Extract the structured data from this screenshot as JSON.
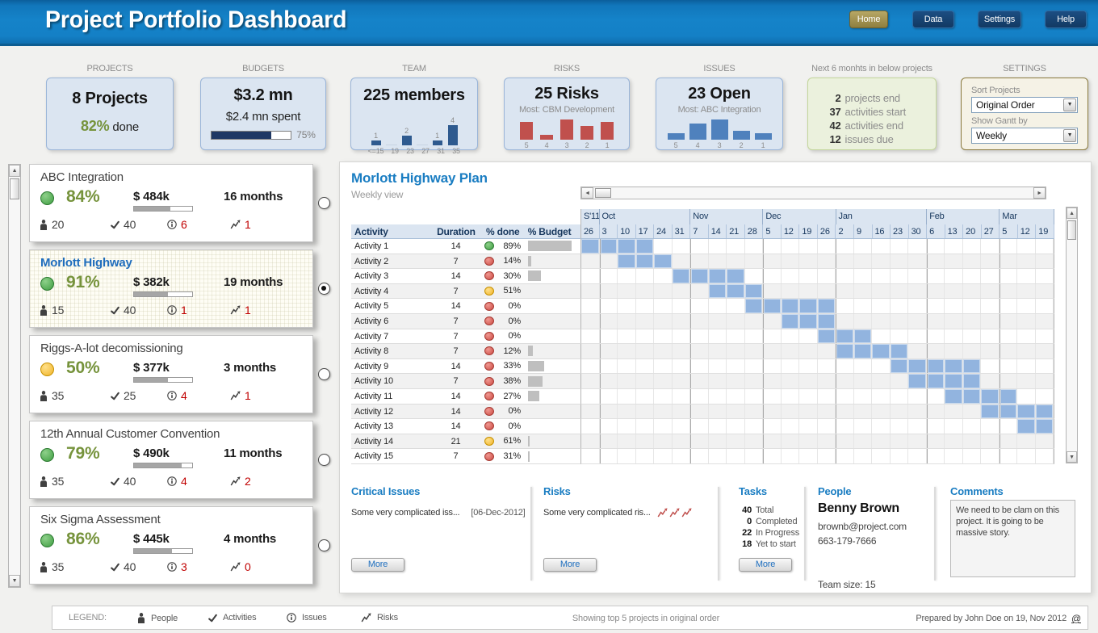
{
  "header": {
    "title": "Project Portfolio Dashboard",
    "buttons": [
      {
        "label": "Home",
        "active": true
      },
      {
        "label": "Data",
        "active": false
      },
      {
        "label": "Settings",
        "active": false
      },
      {
        "label": "Help",
        "active": false
      }
    ]
  },
  "colors": {
    "header_blue": "#1583c9",
    "accent_blue": "#1a7dc2",
    "olive_green": "#76933c",
    "red_text": "#c00000",
    "gantt_bar": "#92b4df",
    "risks_bar": "#c0504d",
    "issues_bar": "#4f81bd",
    "team_bar": "#2e5a8f",
    "kpi_card_bg": "#dbe5f1"
  },
  "kpi": {
    "projects": {
      "label": "PROJECTS",
      "value": "8 Projects",
      "percent": "82%",
      "suffix": "done"
    },
    "budgets": {
      "label": "BUDGETS",
      "value": "$3.2 mn",
      "spent": "$2.4 mn spent",
      "progress_pct": 75,
      "progress_label": "75%"
    },
    "team": {
      "label": "TEAM",
      "value": "225 members",
      "chart": {
        "type": "bar",
        "categories": [
          "<=15",
          "19",
          "23",
          "27",
          "31",
          "35"
        ],
        "values": [
          1,
          0,
          2,
          0,
          1,
          4
        ]
      }
    },
    "risks": {
      "label": "RISKS",
      "value": "25 Risks",
      "subtitle": "Most: CBM Development",
      "chart": {
        "type": "bar",
        "categories": [
          "5",
          "4",
          "3",
          "2",
          "1"
        ],
        "values": [
          8,
          2,
          9,
          6,
          8
        ]
      }
    },
    "issues": {
      "label": "ISSUES",
      "value": "23 Open",
      "subtitle": "Most: ABC Integration",
      "chart": {
        "type": "bar",
        "categories": [
          "5",
          "4",
          "3",
          "2",
          "1"
        ],
        "values": [
          3,
          7,
          9,
          4,
          3
        ]
      }
    },
    "next6": {
      "label": "Next 6 monhts in below projects",
      "items": [
        {
          "num": "2",
          "text": "projects end"
        },
        {
          "num": "37",
          "text": "activities start"
        },
        {
          "num": "42",
          "text": "activities end"
        },
        {
          "num": "12",
          "text": "issues due"
        }
      ]
    },
    "settings": {
      "label": "SETTINGS",
      "sort_label": "Sort Projects",
      "sort_value": "Original Order",
      "gantt_label": "Show Gantt by",
      "gantt_value": "Weekly"
    }
  },
  "projects": [
    {
      "name": "ABC Integration",
      "status": "green",
      "percent": "84%",
      "budget": "$ 484k",
      "budget_bar": 62,
      "duration": "16 months",
      "people": "20",
      "activities": "40",
      "issues": "6",
      "risks": "1",
      "selected": false
    },
    {
      "name": "Morlott Highway",
      "status": "green",
      "percent": "91%",
      "budget": "$ 382k",
      "budget_bar": 58,
      "duration": "19 months",
      "people": "15",
      "activities": "40",
      "issues": "1",
      "risks": "1",
      "selected": true
    },
    {
      "name": "Riggs-A-lot decomissioning",
      "status": "yellow",
      "percent": "50%",
      "budget": "$ 377k",
      "budget_bar": 58,
      "duration": "3 months",
      "people": "35",
      "activities": "25",
      "issues": "4",
      "risks": "1",
      "selected": false
    },
    {
      "name": "12th Annual Customer Convention",
      "status": "green",
      "percent": "79%",
      "budget": "$ 490k",
      "budget_bar": 82,
      "duration": "11 months",
      "people": "35",
      "activities": "40",
      "issues": "4",
      "risks": "2",
      "selected": false
    },
    {
      "name": "Six Sigma Assessment",
      "status": "green",
      "percent": "86%",
      "budget": "$ 445k",
      "budget_bar": 65,
      "duration": "4 months",
      "people": "35",
      "activities": "40",
      "issues": "3",
      "risks": "0",
      "selected": false
    }
  ],
  "gantt": {
    "title": "Morlott Highway Plan",
    "subtitle": "Weekly view",
    "columns": {
      "activity": "Activity",
      "duration": "Duration",
      "done": "% done",
      "budget": "% Budget"
    },
    "months": [
      {
        "label": "S'11",
        "span": 1
      },
      {
        "label": "Oct",
        "span": 5
      },
      {
        "label": "Nov",
        "span": 4
      },
      {
        "label": "Dec",
        "span": 4
      },
      {
        "label": "Jan",
        "span": 5
      },
      {
        "label": "Feb",
        "span": 4
      },
      {
        "label": "Mar",
        "span": 3
      }
    ],
    "weeks": [
      "26",
      "3",
      "10",
      "17",
      "24",
      "31",
      "7",
      "14",
      "21",
      "28",
      "5",
      "12",
      "19",
      "26",
      "2",
      "9",
      "16",
      "23",
      "30",
      "6",
      "13",
      "20",
      "27",
      "5",
      "12",
      "19"
    ],
    "activities": [
      {
        "name": "Activity 1",
        "duration": "14",
        "status": "green",
        "done": "89%",
        "budget_bar": 85,
        "bar_start": 0,
        "bar_span": 4
      },
      {
        "name": "Activity 2",
        "duration": "7",
        "status": "red",
        "done": "14%",
        "budget_bar": 6,
        "bar_start": 2,
        "bar_span": 3
      },
      {
        "name": "Activity 3",
        "duration": "14",
        "status": "red",
        "done": "30%",
        "budget_bar": 25,
        "bar_start": 5,
        "bar_span": 4
      },
      {
        "name": "Activity 4",
        "duration": "7",
        "status": "yellow",
        "done": "51%",
        "budget_bar": 0,
        "bar_start": 7,
        "bar_span": 3
      },
      {
        "name": "Activity 5",
        "duration": "14",
        "status": "red",
        "done": "0%",
        "budget_bar": 0,
        "bar_start": 9,
        "bar_span": 5
      },
      {
        "name": "Activity 6",
        "duration": "7",
        "status": "red",
        "done": "0%",
        "budget_bar": 0,
        "bar_start": 11,
        "bar_span": 3
      },
      {
        "name": "Activity 7",
        "duration": "7",
        "status": "red",
        "done": "0%",
        "budget_bar": 0,
        "bar_start": 13,
        "bar_span": 3
      },
      {
        "name": "Activity 8",
        "duration": "7",
        "status": "red",
        "done": "12%",
        "budget_bar": 10,
        "bar_start": 14,
        "bar_span": 4
      },
      {
        "name": "Activity 9",
        "duration": "14",
        "status": "red",
        "done": "33%",
        "budget_bar": 32,
        "bar_start": 17,
        "bar_span": 5
      },
      {
        "name": "Activity 10",
        "duration": "7",
        "status": "red",
        "done": "38%",
        "budget_bar": 28,
        "bar_start": 18,
        "bar_span": 4
      },
      {
        "name": "Activity 11",
        "duration": "14",
        "status": "red",
        "done": "27%",
        "budget_bar": 22,
        "bar_start": 20,
        "bar_span": 4
      },
      {
        "name": "Activity 12",
        "duration": "14",
        "status": "red",
        "done": "0%",
        "budget_bar": 0,
        "bar_start": 22,
        "bar_span": 4
      },
      {
        "name": "Activity 13",
        "duration": "14",
        "status": "red",
        "done": "0%",
        "budget_bar": 0,
        "bar_start": 24,
        "bar_span": 2
      },
      {
        "name": "Activity 14",
        "duration": "21",
        "status": "yellow",
        "done": "61%",
        "budget_bar": 4,
        "bar_start": -1,
        "bar_span": 0
      },
      {
        "name": "Activity 15",
        "duration": "7",
        "status": "red",
        "done": "31%",
        "budget_bar": 4,
        "bar_start": -1,
        "bar_span": 0
      }
    ]
  },
  "sections": {
    "critical_issues": {
      "title": "Critical Issues",
      "item": "Some very complicated iss...",
      "date": "[06-Dec-2012]",
      "more": "More"
    },
    "risks": {
      "title": "Risks",
      "item": "Some very complicated ris...",
      "flag_count": 3,
      "more": "More"
    },
    "tasks": {
      "title": "Tasks",
      "more": "More",
      "rows": [
        {
          "num": "40",
          "text": "Total"
        },
        {
          "num": "0",
          "text": "Completed"
        },
        {
          "num": "22",
          "text": "In Progress"
        },
        {
          "num": "18",
          "text": "Yet to start"
        }
      ]
    },
    "people": {
      "title": "People",
      "name": "Benny Brown",
      "email": "brownb@project.com",
      "phone": "663-179-7666",
      "team": "Team size: 15"
    },
    "comments": {
      "title": "Comments",
      "text": "We need to be clam on this project. It is going to be massive story."
    }
  },
  "footer": {
    "legend_label": "LEGEND:",
    "legend_items": [
      "People",
      "Activities",
      "Issues",
      "Risks"
    ],
    "center_text": "Showing top 5 projects in original order",
    "right_text": "Prepared by John Doe on 19, Nov 2012",
    "at_sign": "@"
  }
}
